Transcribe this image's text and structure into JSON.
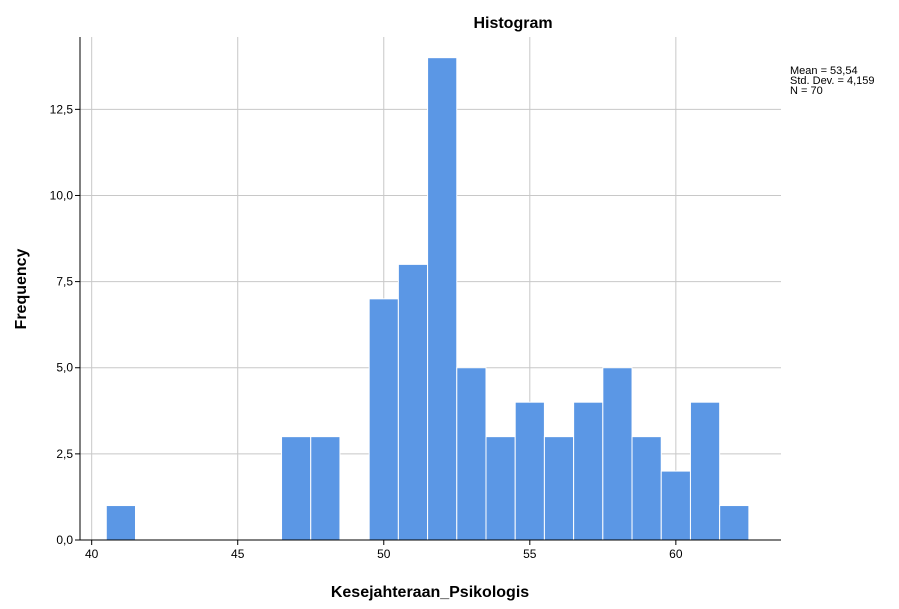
{
  "chart_data": {
    "type": "bar",
    "title": "Histogram",
    "xlabel": "Kesejahteraan_Psikologis",
    "ylabel": "Frequency",
    "xlim": [
      39.6,
      63.6
    ],
    "ylim": [
      0,
      14.6
    ],
    "bin_width": 1,
    "bins": [
      {
        "start": 40.5,
        "value": 1
      },
      {
        "start": 46.5,
        "value": 3
      },
      {
        "start": 47.5,
        "value": 3
      },
      {
        "start": 49.5,
        "value": 7
      },
      {
        "start": 50.5,
        "value": 8
      },
      {
        "start": 51.5,
        "value": 14
      },
      {
        "start": 52.5,
        "value": 5
      },
      {
        "start": 53.5,
        "value": 3
      },
      {
        "start": 54.5,
        "value": 4
      },
      {
        "start": 55.5,
        "value": 3
      },
      {
        "start": 56.5,
        "value": 4
      },
      {
        "start": 57.5,
        "value": 5
      },
      {
        "start": 58.5,
        "value": 3
      },
      {
        "start": 59.5,
        "value": 2
      },
      {
        "start": 60.5,
        "value": 4
      },
      {
        "start": 61.5,
        "value": 1
      }
    ],
    "x_ticks": [
      40,
      45,
      50,
      55,
      60
    ],
    "x_tick_labels": [
      "40",
      "45",
      "50",
      "55",
      "60"
    ],
    "y_ticks": [
      0,
      2.5,
      5,
      7.5,
      10,
      12.5
    ],
    "y_tick_labels": [
      "0,0",
      "2,5",
      "5,0",
      "7,5",
      "10,0",
      "12,5"
    ],
    "grid": true,
    "bar_color": "#5b97e5",
    "stats": [
      "Mean = 53,54",
      "Std. Dev. = 4,159",
      "N = 70"
    ],
    "stats_position": "top-right"
  }
}
